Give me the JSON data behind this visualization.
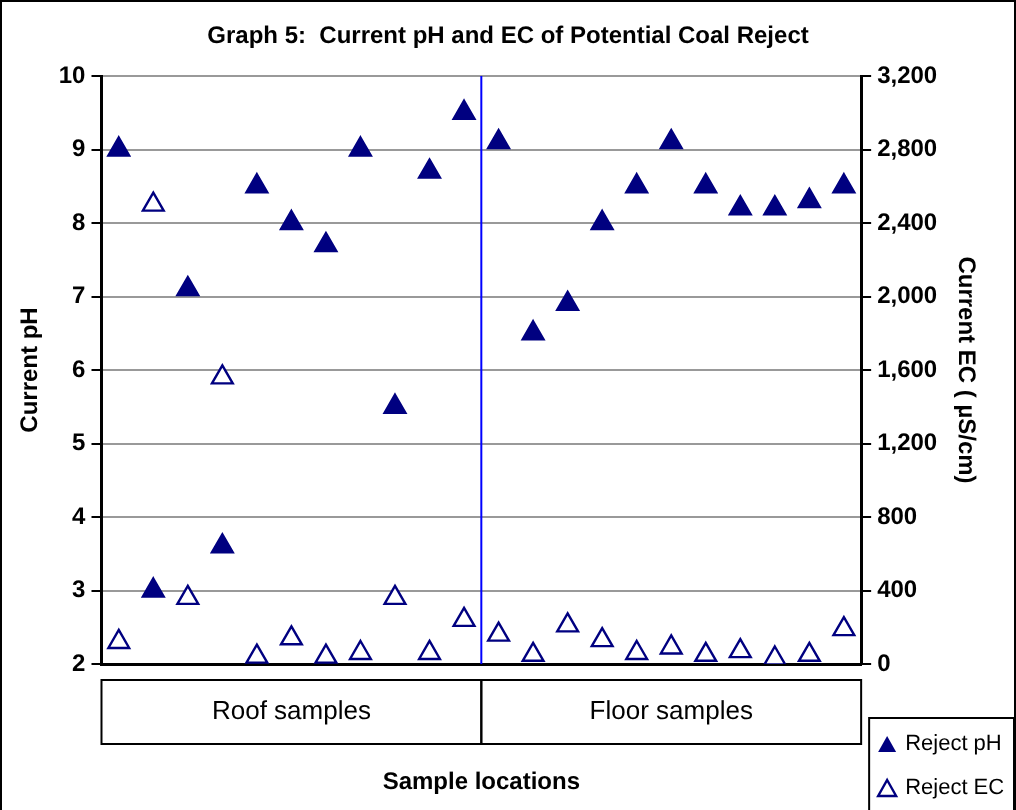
{
  "chart_data": {
    "type": "scatter",
    "title": "Graph 5:  Current pH and EC of Potential Coal Reject",
    "xlabel": "Sample locations",
    "ylabel": "Current pH",
    "y2label": "Current EC ( µS/cm)",
    "categories": [
      null,
      null,
      null,
      null,
      null,
      null,
      null,
      null,
      null,
      null,
      null,
      null,
      null,
      null,
      null,
      null,
      null,
      null,
      null,
      null,
      null,
      null
    ],
    "series": [
      {
        "name": "Reject pH",
        "color": "#000080",
        "values": [
          9,
          3,
          7.1,
          3.6,
          8.5,
          8,
          7.7,
          9,
          5.5,
          8.7,
          9.5,
          9.1,
          6.5,
          6.9,
          8,
          8.5,
          9.1,
          8.5,
          8.2,
          8.2,
          8.3,
          8.5
        ]
      },
      {
        "name": "Reject EC",
        "color": "#000080",
        "axis": "y2",
        "values": [
          120,
          2500,
          360,
          1560,
          40,
          140,
          40,
          60,
          360,
          60,
          240,
          160,
          50,
          210,
          130,
          60,
          90,
          50,
          70,
          30,
          50,
          190
        ]
      }
    ],
    "ylim": [
      2,
      10
    ],
    "yticks": [
      2,
      3,
      4,
      5,
      6,
      7,
      8,
      9,
      10
    ],
    "y2lim": [
      0,
      3200
    ],
    "y2ticks": [
      0,
      400,
      800,
      {
        "value": 1200,
        "label": "1,200"
      },
      {
        "value": 1600,
        "label": "1,600"
      },
      {
        "value": 2000,
        "label": "2,000"
      },
      {
        "value": 2400,
        "label": "2,400"
      },
      {
        "value": 2800,
        "label": "2,800"
      },
      {
        "value": 3200,
        "label": "3,200"
      }
    ],
    "annotations": [
      "Roof samples",
      "Floor samples"
    ],
    "grid": "y",
    "legend": "bottom right",
    "marker": "triangle"
  }
}
